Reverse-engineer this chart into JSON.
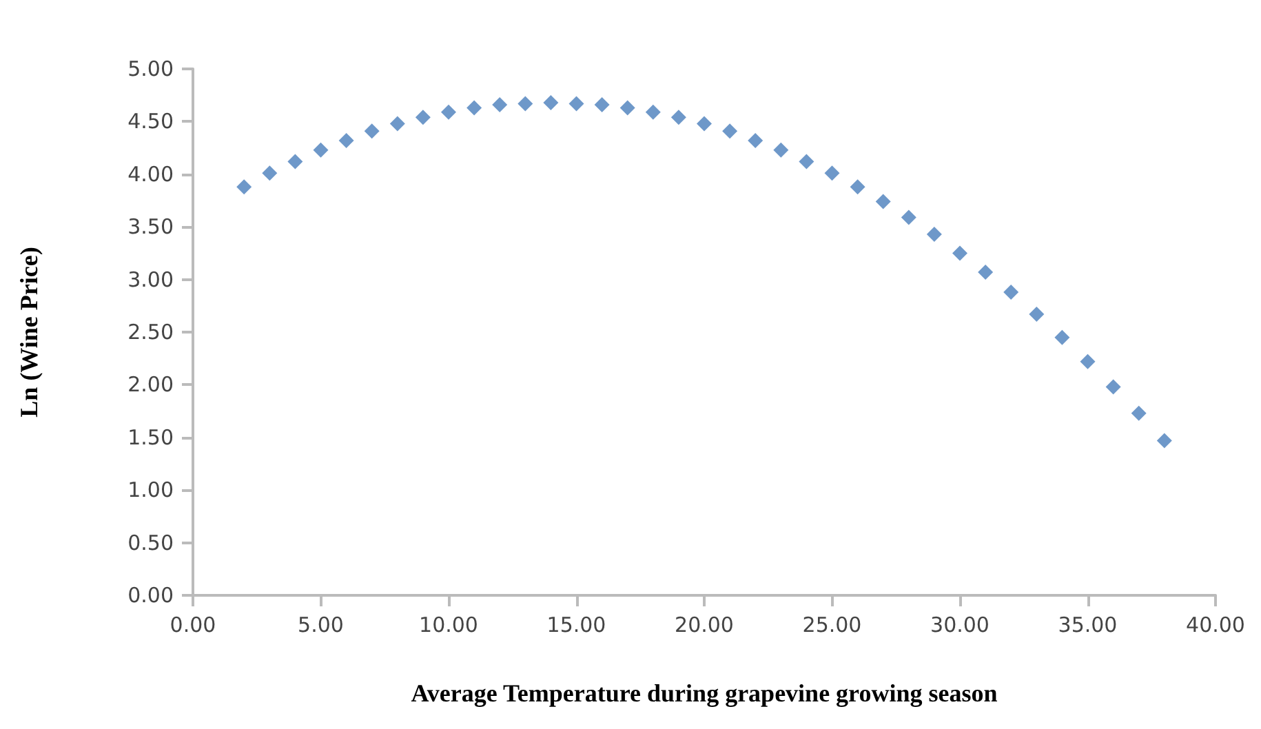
{
  "chart_data": {
    "type": "scatter",
    "xlabel": "Average Temperature during grapevine growing season",
    "ylabel": "Ln (Wine Price)",
    "x": [
      2,
      3,
      4,
      5,
      6,
      7,
      8,
      9,
      10,
      11,
      12,
      13,
      14,
      15,
      16,
      17,
      18,
      19,
      20,
      21,
      22,
      23,
      24,
      25,
      26,
      27,
      28,
      29,
      30,
      31,
      32,
      33,
      34,
      35,
      36,
      37,
      38
    ],
    "series": [
      {
        "color": "#4a7ebb",
        "values": [
          3.88,
          4.01,
          4.12,
          4.23,
          4.32,
          4.41,
          4.48,
          4.54,
          4.59,
          4.63,
          4.66,
          4.67,
          4.68,
          4.67,
          4.66,
          4.63,
          4.59,
          4.54,
          4.48,
          4.41,
          4.32,
          4.23,
          4.12,
          4.01,
          3.88,
          3.74,
          3.59,
          3.43,
          3.25,
          3.07,
          2.88,
          2.67,
          2.45,
          2.22,
          1.98,
          1.73,
          1.47
        ]
      }
    ],
    "xlim": [
      0,
      40
    ],
    "xticks": [
      {
        "value": 0,
        "label": "0.00"
      },
      {
        "value": 5,
        "label": "5.00"
      },
      {
        "value": 10,
        "label": "10.00"
      },
      {
        "value": 15,
        "label": "15.00"
      },
      {
        "value": 20,
        "label": "20.00"
      },
      {
        "value": 25,
        "label": "25.00"
      },
      {
        "value": 30,
        "label": "30.00"
      },
      {
        "value": 35,
        "label": "35.00"
      },
      {
        "value": 40,
        "label": "40.00"
      }
    ],
    "ylim": [
      0,
      5
    ],
    "yticks": [
      {
        "value": 0,
        "label": "0.00"
      },
      {
        "value": 0.5,
        "label": "0.50"
      },
      {
        "value": 1,
        "label": "1.00"
      },
      {
        "value": 1.5,
        "label": "1.50"
      },
      {
        "value": 2,
        "label": "2.00"
      },
      {
        "value": 2.5,
        "label": "2.50"
      },
      {
        "value": 3,
        "label": "3.00"
      },
      {
        "value": 3.5,
        "label": "3.50"
      },
      {
        "value": 4,
        "label": "4.00"
      },
      {
        "value": 4.5,
        "label": "4.50"
      },
      {
        "value": 5,
        "label": "5.00"
      }
    ],
    "grid": false,
    "marker": "diamond"
  }
}
